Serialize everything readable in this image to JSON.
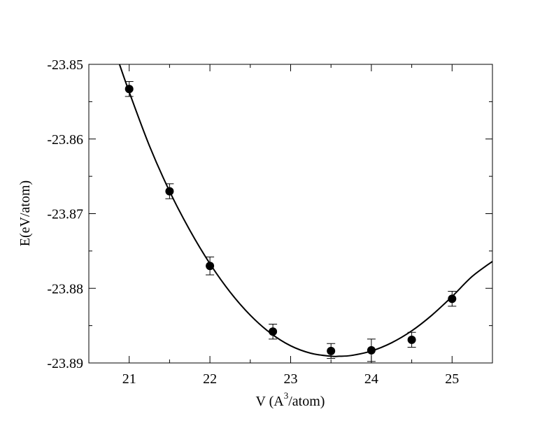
{
  "chart_data": {
    "type": "scatter",
    "title": "",
    "xlabel": {
      "pre": "V (A",
      "sup": "3",
      "post": "/atom)"
    },
    "ylabel": "E(eV/atom)",
    "xlim": [
      20.5,
      25.5
    ],
    "ylim": [
      -23.89,
      -23.85
    ],
    "x_ticks": [
      21,
      22,
      23,
      24,
      25
    ],
    "x_tick_labels": [
      "21",
      "22",
      "23",
      "24",
      "25"
    ],
    "y_ticks": [
      -23.85,
      -23.86,
      -23.87,
      -23.88,
      -23.89
    ],
    "y_tick_labels": [
      "-23.85",
      "-23.86",
      "-23.87",
      "-23.88",
      "-23.89"
    ],
    "grid": false,
    "legend": "none",
    "colors": {
      "marker": "#000000",
      "line": "#000000"
    },
    "series": [
      {
        "kind": "points-with-error-bars",
        "x": [
          21.0,
          21.5,
          22.0,
          22.78,
          23.5,
          24.0,
          24.5,
          25.0
        ],
        "y": [
          -23.8533,
          -23.867,
          -23.877,
          -23.8858,
          -23.8884,
          -23.8883,
          -23.8869,
          -23.8814
        ],
        "yerr": [
          0.001,
          0.001,
          0.0012,
          0.001,
          0.001,
          0.0015,
          0.001,
          0.001
        ]
      },
      {
        "kind": "fit-curve",
        "x": [
          20.88,
          21.0,
          21.25,
          21.5,
          21.75,
          22.0,
          22.25,
          22.5,
          22.75,
          23.0,
          23.25,
          23.5,
          23.6,
          23.75,
          24.0,
          24.25,
          24.5,
          24.75,
          25.0,
          25.25,
          25.5
        ],
        "y": [
          -23.85,
          -23.8537,
          -23.8609,
          -23.867,
          -23.8722,
          -23.8767,
          -23.8805,
          -23.8836,
          -23.886,
          -23.8877,
          -23.8887,
          -23.8891,
          -23.8891,
          -23.889,
          -23.8884,
          -23.8873,
          -23.8857,
          -23.8836,
          -23.8811,
          -23.8784,
          -23.8764
        ]
      }
    ]
  }
}
